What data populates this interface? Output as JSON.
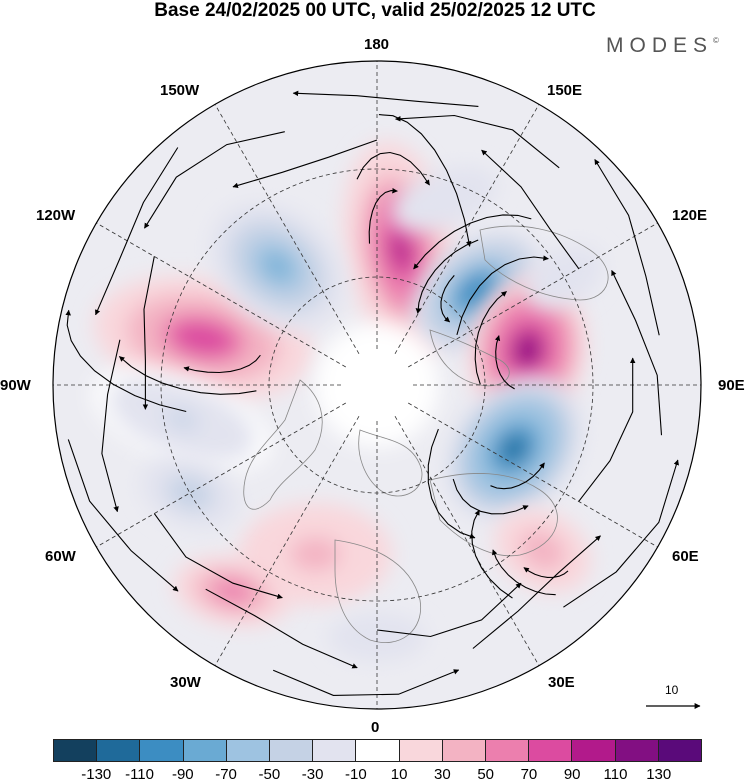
{
  "title": "Base 24/02/2025 00 UTC, valid 25/02/2025 12 UTC",
  "brand": {
    "text": "MODES",
    "mark": "©"
  },
  "longitude_labels": {
    "lon_180": "180",
    "lon_150E": "150E",
    "lon_120E": "120E",
    "lon_90E": "90E",
    "lon_60E": "60E",
    "lon_30E": "30E",
    "lon_0": "0",
    "lon_30W": "30W",
    "lon_60W": "60W",
    "lon_90W": "90W",
    "lon_120W": "120W",
    "lon_150W": "150W"
  },
  "vector_scale": {
    "label": "10"
  },
  "colorbar": {
    "colors": [
      "#13405e",
      "#1f6a9a",
      "#3c8dc2",
      "#6aaad3",
      "#9ec3e1",
      "#c5d2e5",
      "#e2e3ef",
      "#ffffff",
      "#f9d7dc",
      "#f3b3c3",
      "#ec7fae",
      "#dc4ba0",
      "#b21a8b",
      "#820f82",
      "#5a0a7a"
    ],
    "ticks": [
      "-130",
      "-110",
      "-90",
      "-70",
      "-50",
      "-30",
      "-10",
      "10",
      "30",
      "50",
      "70",
      "90",
      "110",
      "130"
    ]
  },
  "anomalies": [
    {
      "lon": 170,
      "lat": 52,
      "value": 95,
      "rx": 55,
      "ry": 110,
      "angle": 170
    },
    {
      "lon": 133,
      "lat": 52,
      "value": -110,
      "rx": 75,
      "ry": 50,
      "angle": 140
    },
    {
      "lon": 103,
      "lat": 47,
      "value": 120,
      "rx": 75,
      "ry": 58,
      "angle": 100
    },
    {
      "lon": 65,
      "lat": 48,
      "value": -120,
      "rx": 60,
      "ry": 80,
      "angle": 40
    },
    {
      "lon": 45,
      "lat": 25,
      "value": 45,
      "rx": 60,
      "ry": 45,
      "angle": 30
    },
    {
      "lon": -105,
      "lat": 40,
      "value": 85,
      "rx": 110,
      "ry": 60,
      "angle": 10
    },
    {
      "lon": -140,
      "lat": 47,
      "value": -75,
      "rx": 75,
      "ry": 55,
      "angle": 40
    },
    {
      "lon": -80,
      "lat": 35,
      "value": -35,
      "rx": 110,
      "ry": 50,
      "angle": 20
    },
    {
      "lon": -20,
      "lat": 40,
      "value": 40,
      "rx": 90,
      "ry": 60,
      "angle": 0
    },
    {
      "lon": -35,
      "lat": 20,
      "value": 60,
      "rx": 70,
      "ry": 40,
      "angle": 10
    },
    {
      "lon": -60,
      "lat": 30,
      "value": -45,
      "rx": 60,
      "ry": 40,
      "angle": 20
    },
    {
      "lon": 0,
      "lat": 20,
      "value": -30,
      "rx": 70,
      "ry": 35,
      "angle": 0
    },
    {
      "lon": 160,
      "lat": 35,
      "value": -25,
      "rx": 80,
      "ry": 40,
      "angle": 160
    },
    {
      "lon": 120,
      "lat": 30,
      "value": -30,
      "rx": 60,
      "ry": 40,
      "angle": 150
    }
  ]
}
